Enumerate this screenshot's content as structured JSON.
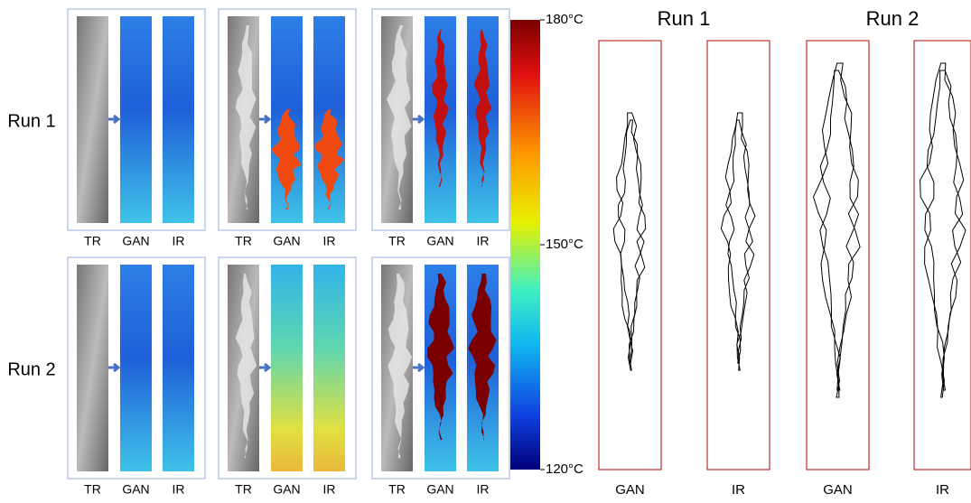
{
  "row_labels": [
    "Run 1",
    "Run 2"
  ],
  "panels": [
    {
      "labels": [
        "TR",
        "GAN",
        "IR"
      ]
    },
    {
      "labels": [
        "TR",
        "GAN",
        "IR"
      ]
    },
    {
      "labels": [
        "TR",
        "GAN",
        "IR"
      ]
    },
    {
      "labels": [
        "TR",
        "GAN",
        "IR"
      ]
    },
    {
      "labels": [
        "TR",
        "GAN",
        "IR"
      ]
    },
    {
      "labels": [
        "TR",
        "GAN",
        "IR"
      ]
    }
  ],
  "colorbar": {
    "range": [
      120,
      180
    ],
    "ticks": [
      {
        "value": 180,
        "label": "180°C"
      },
      {
        "value": 150,
        "label": "150°C"
      },
      {
        "value": 120,
        "label": "120°C"
      }
    ]
  },
  "outline_titles": [
    "Run 1",
    "Run 2"
  ],
  "outline_labels": [
    "GAN",
    "IR",
    "GAN",
    "IR"
  ]
}
